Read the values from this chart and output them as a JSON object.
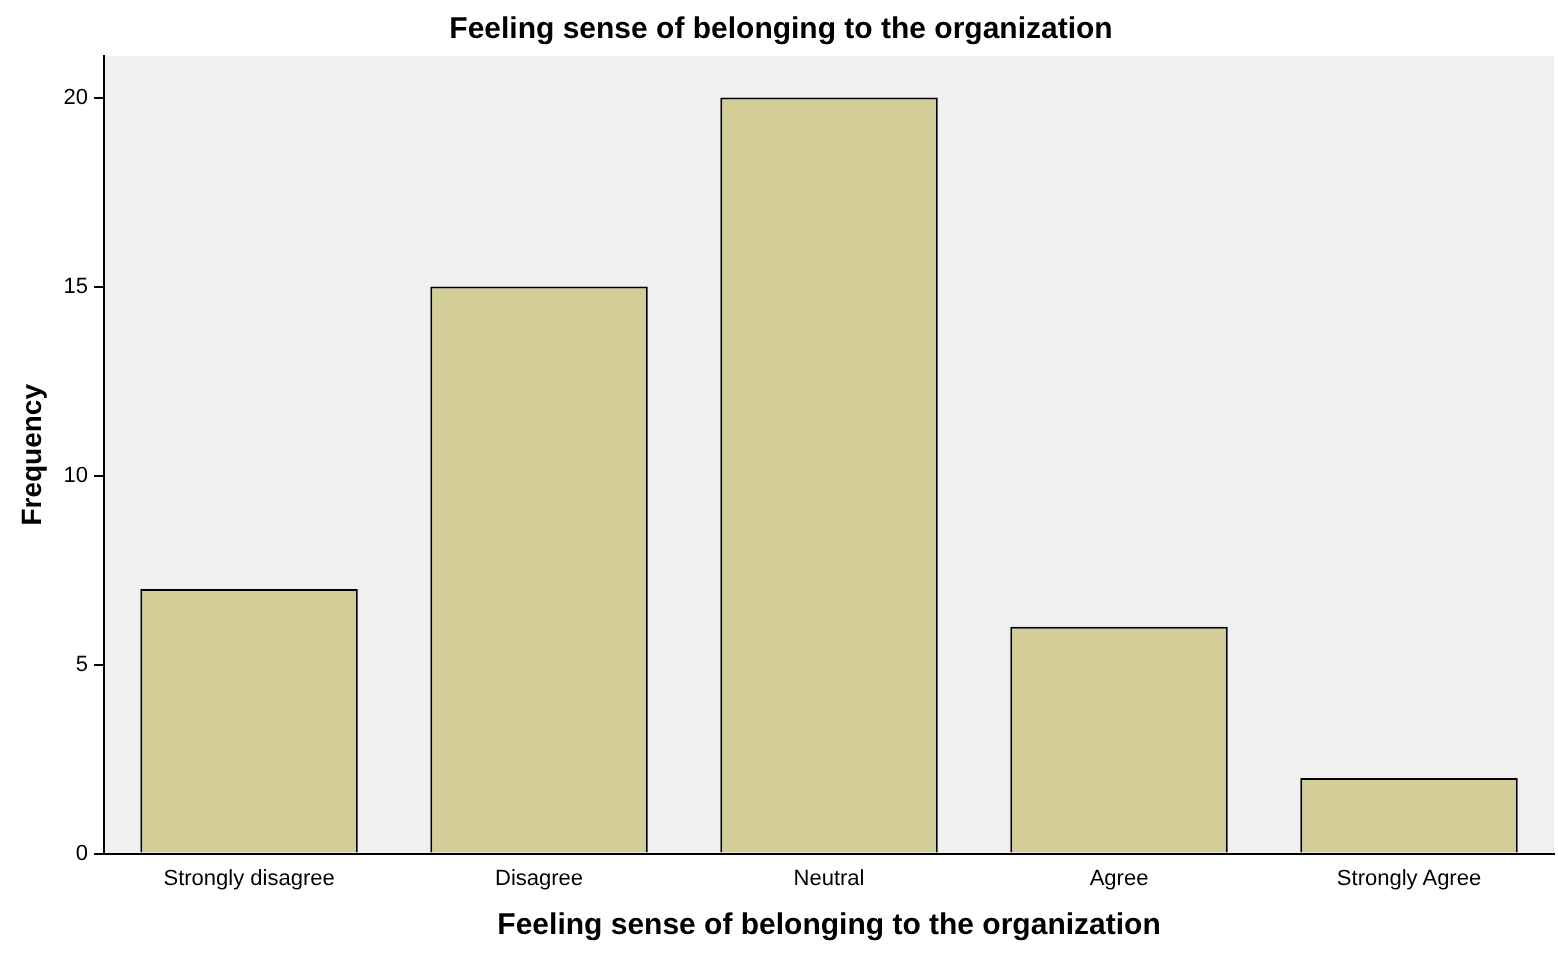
{
  "chart_data": {
    "type": "bar",
    "title": "Feeling sense of belonging to the organization",
    "xlabel": "Feeling sense of belonging to the organization",
    "ylabel": "Frequency",
    "categories": [
      "Strongly disagree",
      "Disagree",
      "Neutral",
      "Agree",
      "Strongly Agree"
    ],
    "values": [
      7,
      15,
      20,
      6,
      2
    ],
    "color": "#d3ce98",
    "ylim": [
      0,
      21.1
    ],
    "yticks": [
      0,
      5,
      10,
      15,
      20
    ],
    "grid": false,
    "legend": false
  }
}
